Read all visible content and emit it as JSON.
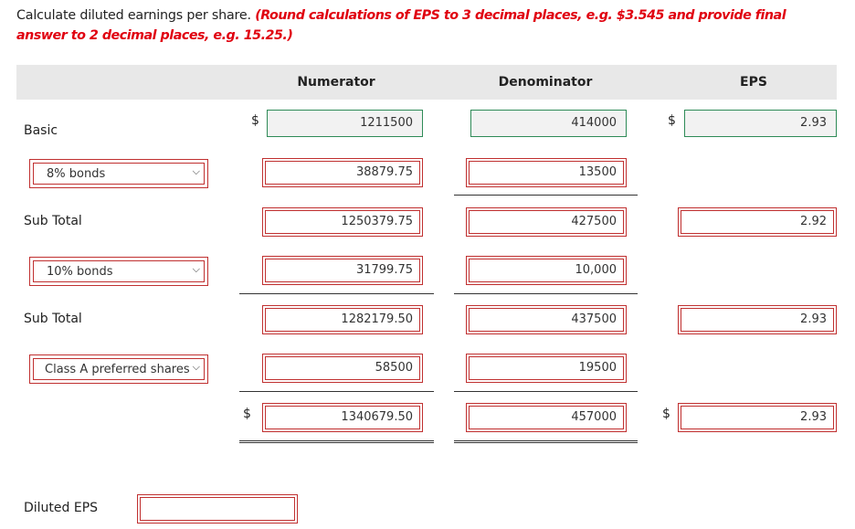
{
  "instruction": {
    "text": "Calculate diluted earnings per share.",
    "note": "(Round calculations of EPS to 3 decimal places, e.g. $3.545 and provide final answer to 2 decimal places, e.g. 15.25.)"
  },
  "columns": {
    "numerator": "Numerator",
    "denominator": "Denominator",
    "eps": "EPS"
  },
  "currency_symbol": "$",
  "rows": {
    "basic": {
      "label": "Basic",
      "numerator": "1211500",
      "denominator": "414000",
      "eps": "2.93"
    },
    "bonds8": {
      "select": "8% bonds",
      "numerator": "38879.75",
      "denominator": "13500"
    },
    "subtotal1": {
      "label": "Sub Total",
      "numerator": "1250379.75",
      "denominator": "427500",
      "eps": "2.92"
    },
    "bonds10": {
      "select": "10% bonds",
      "numerator": "31799.75",
      "denominator": "10,000"
    },
    "subtotal2": {
      "label": "Sub Total",
      "numerator": "1282179.50",
      "denominator": "437500",
      "eps": "2.93"
    },
    "preferred": {
      "select": "Class A preferred shares",
      "numerator": "58500",
      "denominator": "19500"
    },
    "total": {
      "numerator": "1340679.50",
      "denominator": "457000",
      "eps": "2.93"
    },
    "diluted": {
      "label": "Diluted EPS",
      "value": ""
    }
  },
  "colors": {
    "required_border": "#c03030",
    "prefilled_border": "#2e8b57",
    "note_text": "#e0000f"
  }
}
